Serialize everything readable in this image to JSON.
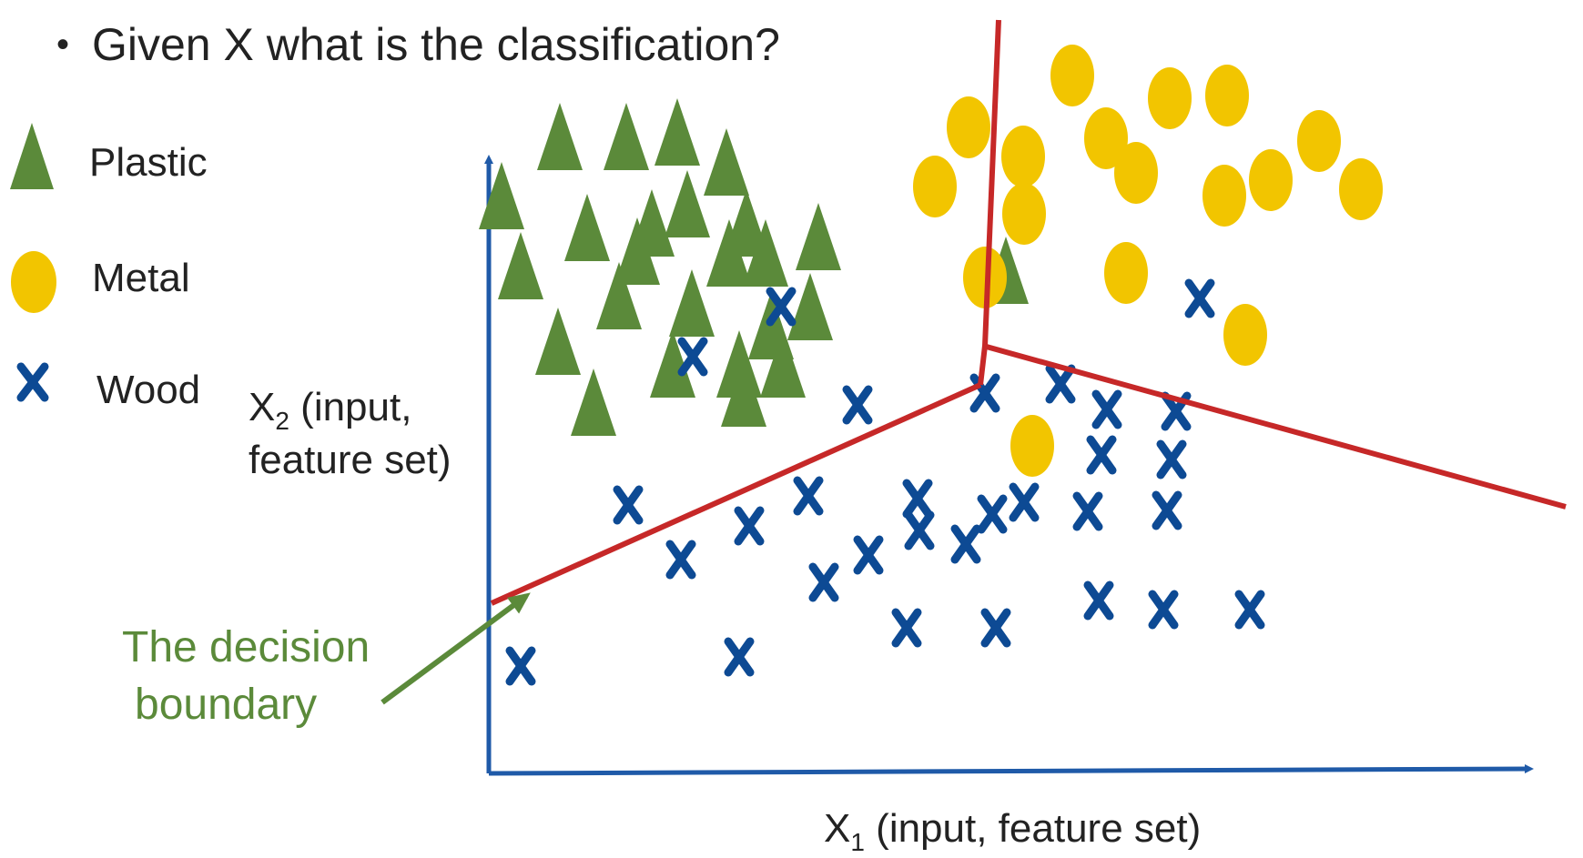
{
  "heading": {
    "bullet": "•",
    "text": "Given X what is the classification?"
  },
  "legend": {
    "plastic": "Plastic",
    "metal": "Metal",
    "wood": "Wood"
  },
  "axes": {
    "x_label_main": "X",
    "x_label_sub": "1",
    "x_label_rest": " (input, feature set)",
    "y_label_main": "X",
    "y_label_sub": "2",
    "y_label_rest": " (input,",
    "y_label_line2": "feature set)"
  },
  "annotation": {
    "line1": "The decision",
    "line2": "boundary"
  },
  "colors": {
    "plastic": "#5b8a3a",
    "metal": "#f2c500",
    "wood": "#0d4a94",
    "axis": "#1f5aa8",
    "boundary": "#c62828",
    "annotation": "#5b8a3a"
  },
  "markers": {
    "plastic": [
      [
        615,
        150
      ],
      [
        688,
        150
      ],
      [
        744,
        145
      ],
      [
        798,
        178
      ],
      [
        551,
        215
      ],
      [
        755,
        224
      ],
      [
        820,
        245
      ],
      [
        716,
        245
      ],
      [
        645,
        250
      ],
      [
        700,
        276
      ],
      [
        801,
        278
      ],
      [
        841,
        278
      ],
      [
        899,
        260
      ],
      [
        572,
        292
      ],
      [
        680,
        325
      ],
      [
        760,
        333
      ],
      [
        890,
        337
      ],
      [
        847,
        358
      ],
      [
        613,
        375
      ],
      [
        739,
        400
      ],
      [
        812,
        400
      ],
      [
        860,
        400
      ],
      [
        817,
        432
      ],
      [
        652,
        442
      ],
      [
        1105,
        297
      ]
    ],
    "metal": [
      [
        1178,
        83
      ],
      [
        1285,
        108
      ],
      [
        1348,
        105
      ],
      [
        1064,
        140
      ],
      [
        1215,
        152
      ],
      [
        1449,
        155
      ],
      [
        1124,
        172
      ],
      [
        1027,
        205
      ],
      [
        1248,
        190
      ],
      [
        1345,
        215
      ],
      [
        1396,
        198
      ],
      [
        1495,
        208
      ],
      [
        1125,
        235
      ],
      [
        1082,
        305
      ],
      [
        1237,
        300
      ],
      [
        1368,
        368
      ],
      [
        1134,
        490
      ]
    ],
    "wood": [
      [
        858,
        337
      ],
      [
        761,
        392
      ],
      [
        942,
        445
      ],
      [
        1082,
        432
      ],
      [
        1165,
        422
      ],
      [
        1216,
        450
      ],
      [
        1292,
        452
      ],
      [
        1210,
        500
      ],
      [
        1287,
        505
      ],
      [
        1318,
        328
      ],
      [
        690,
        555
      ],
      [
        888,
        545
      ],
      [
        1008,
        548
      ],
      [
        1090,
        565
      ],
      [
        1125,
        552
      ],
      [
        1195,
        562
      ],
      [
        1282,
        561
      ],
      [
        823,
        578
      ],
      [
        748,
        615
      ],
      [
        954,
        610
      ],
      [
        1010,
        583
      ],
      [
        1061,
        598
      ],
      [
        905,
        640
      ],
      [
        1207,
        660
      ],
      [
        1278,
        670
      ],
      [
        1373,
        670
      ],
      [
        996,
        690
      ],
      [
        1094,
        690
      ],
      [
        812,
        722
      ],
      [
        572,
        732
      ]
    ]
  }
}
